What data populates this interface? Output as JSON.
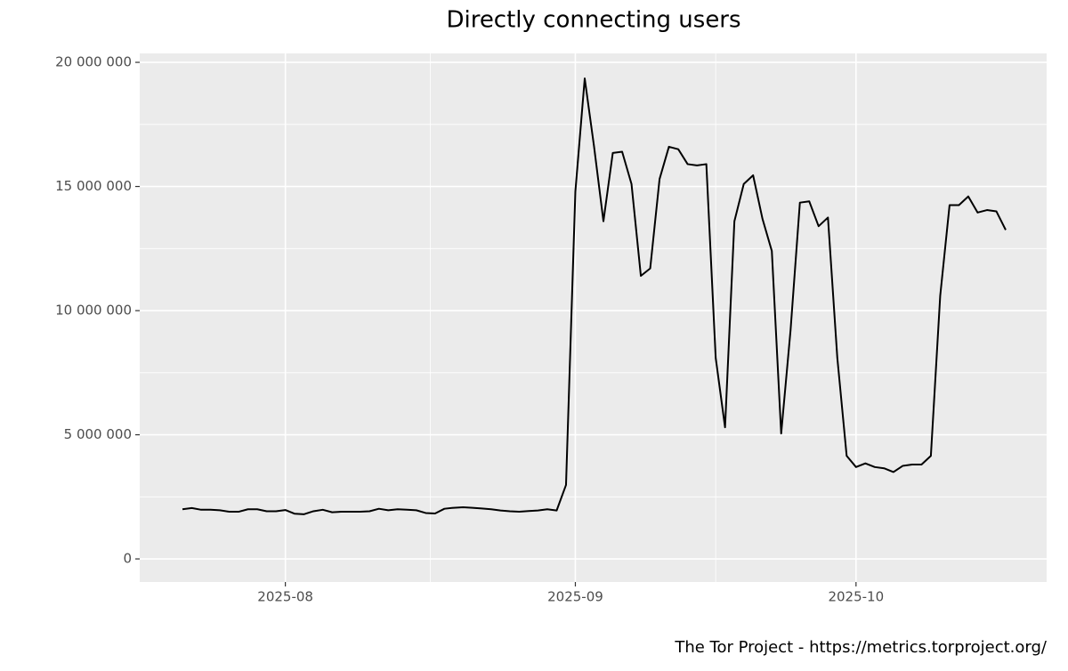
{
  "chart_data": {
    "type": "line",
    "title": "Directly connecting users",
    "caption": "The Tor Project - https://metrics.torproject.org/",
    "categories": [
      null,
      null,
      null,
      null,
      null,
      null,
      null,
      null,
      null,
      null,
      null,
      "2025-08",
      null,
      null,
      null,
      null,
      null,
      null,
      null,
      null,
      null,
      null,
      null,
      null,
      null,
      null,
      null,
      null,
      null,
      null,
      null,
      null,
      null,
      null,
      null,
      null,
      null,
      null,
      null,
      null,
      null,
      null,
      "2025-09",
      null,
      null,
      null,
      null,
      null,
      null,
      null,
      null,
      null,
      null,
      null,
      null,
      null,
      null,
      null,
      null,
      null,
      null,
      null,
      null,
      null,
      null,
      null,
      null,
      null,
      null,
      null,
      null,
      null,
      "2025-10",
      null,
      null,
      null,
      null,
      null,
      null,
      null,
      null,
      null,
      null,
      null,
      null,
      null,
      null,
      null,
      null
    ],
    "series": [
      {
        "name": "Directly connecting users",
        "color": "#000000",
        "values": [
          2000000,
          2050000,
          1980000,
          1980000,
          1960000,
          1900000,
          1900000,
          2000000,
          2000000,
          1920000,
          1920000,
          1970000,
          1820000,
          1800000,
          1920000,
          1980000,
          1880000,
          1900000,
          1900000,
          1900000,
          1920000,
          2020000,
          1960000,
          2000000,
          1980000,
          1960000,
          1850000,
          1830000,
          2020000,
          2060000,
          2080000,
          2060000,
          2030000,
          2000000,
          1950000,
          1920000,
          1900000,
          1930000,
          1950000,
          2000000,
          1950000,
          2980000,
          14800000,
          19350000,
          16600000,
          13600000,
          16350000,
          16400000,
          15100000,
          11400000,
          11700000,
          15300000,
          16600000,
          16500000,
          15900000,
          15850000,
          15900000,
          8100000,
          5300000,
          13600000,
          15100000,
          15450000,
          13700000,
          12400000,
          5050000,
          9200000,
          14350000,
          14400000,
          13400000,
          13750000,
          8100000,
          4150000,
          3700000,
          3850000,
          3700000,
          3650000,
          3500000,
          3750000,
          3800000,
          3800000,
          4150000,
          10600000,
          14250000,
          14250000,
          14600000,
          13950000,
          14050000,
          14000000,
          13250000
        ]
      }
    ],
    "ylim": [
      -930000,
      20360000
    ],
    "yticks": [
      0,
      {
        "value": 5000000,
        "label": "5 000 000"
      },
      {
        "value": 10000000,
        "label": "10 000 000"
      },
      {
        "value": 15000000,
        "label": "15 000 000"
      },
      {
        "value": 20000000,
        "label": "20 000 000"
      }
    ],
    "grid": true,
    "panel_color": "#ebebeb",
    "grid_color": "#ffffff"
  }
}
